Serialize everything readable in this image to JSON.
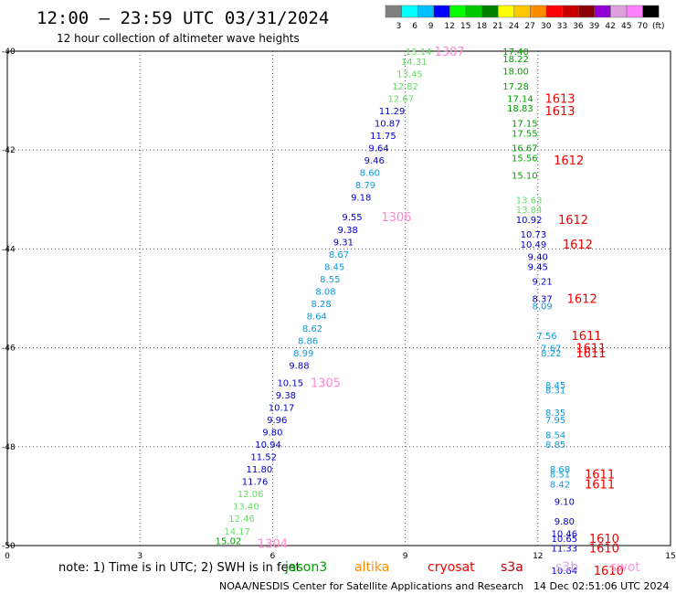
{
  "header": {
    "title": "12:00 – 23:59 UTC 03/31/2024",
    "subtitle": "12 hour collection of altimeter wave heights"
  },
  "colorbar": {
    "unit": "(ft)",
    "levels": [
      "3",
      "6",
      "9",
      "12",
      "15",
      "18",
      "21",
      "24",
      "27",
      "30",
      "33",
      "36",
      "39",
      "42",
      "45",
      "70"
    ],
    "colors": [
      "#808080",
      "#00ffff",
      "#00bfff",
      "#0000ff",
      "#00ff00",
      "#00c800",
      "#008000",
      "#ffff00",
      "#ffc800",
      "#ff8c00",
      "#ff0000",
      "#c80000",
      "#8b0000",
      "#9400d3",
      "#dda0dd",
      "#ff80ff",
      "#000000"
    ]
  },
  "footer": {
    "note": "note:  1) Time is in UTC;  2) SWH is in feet",
    "credit": "NOAA/NESDIS Center for Satellite Applications and Research",
    "timestamp": "14 Dec 02:51:06 UTC 2024"
  },
  "legend": [
    {
      "name": "jason3",
      "color": "#00a000"
    },
    {
      "name": "altika",
      "color": "#ff8c00"
    },
    {
      "name": "cryosat",
      "color": "#ff0000"
    },
    {
      "name": "s3a",
      "color": "#c00000"
    },
    {
      "name": "s3b",
      "color": "#d8a8e0"
    },
    {
      "name": "swot",
      "color": "#ff99dd"
    }
  ],
  "chart_data": {
    "type": "scatter",
    "xlim": [
      0,
      15
    ],
    "ylim": [
      -50,
      -40
    ],
    "xticks": [
      "0",
      "3",
      "6",
      "9",
      "12",
      "15"
    ],
    "yticks": [
      "-40",
      "-42",
      "-44",
      "-46",
      "-48",
      "-50"
    ],
    "grid": true,
    "points": [
      {
        "x": 9.3,
        "y": -40.0,
        "label": "13.14",
        "color": "#66dd66"
      },
      {
        "x": 9.2,
        "y": -40.2,
        "label": "14.31",
        "color": "#66dd66"
      },
      {
        "x": 9.1,
        "y": -40.45,
        "label": "13.45",
        "color": "#66dd66"
      },
      {
        "x": 9.0,
        "y": -40.7,
        "label": "12.82",
        "color": "#66dd66"
      },
      {
        "x": 8.9,
        "y": -40.95,
        "label": "12.67",
        "color": "#66dd66"
      },
      {
        "x": 8.7,
        "y": -41.2,
        "label": "11.29",
        "color": "#0000cc"
      },
      {
        "x": 8.6,
        "y": -41.45,
        "label": "10.87",
        "color": "#0000cc"
      },
      {
        "x": 8.5,
        "y": -41.7,
        "label": "11.75",
        "color": "#0000cc"
      },
      {
        "x": 8.4,
        "y": -41.95,
        "label": "9.64",
        "color": "#0000cc"
      },
      {
        "x": 8.3,
        "y": -42.2,
        "label": "9.46",
        "color": "#0000cc"
      },
      {
        "x": 8.2,
        "y": -42.45,
        "label": "8.60",
        "color": "#1199dd"
      },
      {
        "x": 8.1,
        "y": -42.7,
        "label": "8.79",
        "color": "#1199dd"
      },
      {
        "x": 8.0,
        "y": -42.95,
        "label": "9.18",
        "color": "#0000cc"
      },
      {
        "x": 7.8,
        "y": -43.35,
        "label": "9.55",
        "color": "#0000cc"
      },
      {
        "x": 7.7,
        "y": -43.6,
        "label": "9.38",
        "color": "#0000cc"
      },
      {
        "x": 7.6,
        "y": -43.85,
        "label": "9.31",
        "color": "#0000cc"
      },
      {
        "x": 7.5,
        "y": -44.1,
        "label": "8.67",
        "color": "#1199dd"
      },
      {
        "x": 7.4,
        "y": -44.35,
        "label": "8.45",
        "color": "#1199dd"
      },
      {
        "x": 7.3,
        "y": -44.6,
        "label": "8.55",
        "color": "#1199dd"
      },
      {
        "x": 7.2,
        "y": -44.85,
        "label": "8.08",
        "color": "#1199dd"
      },
      {
        "x": 7.1,
        "y": -45.1,
        "label": "8.28",
        "color": "#1199dd"
      },
      {
        "x": 7.0,
        "y": -45.35,
        "label": "8.64",
        "color": "#1199dd"
      },
      {
        "x": 6.9,
        "y": -45.6,
        "label": "8.62",
        "color": "#1199dd"
      },
      {
        "x": 6.8,
        "y": -45.85,
        "label": "8.86",
        "color": "#1199dd"
      },
      {
        "x": 6.7,
        "y": -46.1,
        "label": "8.99",
        "color": "#1199dd"
      },
      {
        "x": 6.6,
        "y": -46.35,
        "label": "9.88",
        "color": "#0000cc"
      },
      {
        "x": 6.4,
        "y": -46.7,
        "label": "10.15",
        "color": "#0000cc"
      },
      {
        "x": 6.3,
        "y": -46.95,
        "label": "9.38",
        "color": "#0000cc"
      },
      {
        "x": 6.2,
        "y": -47.2,
        "label": "10.17",
        "color": "#0000cc"
      },
      {
        "x": 6.1,
        "y": -47.45,
        "label": "9.96",
        "color": "#0000cc"
      },
      {
        "x": 6.0,
        "y": -47.7,
        "label": "9.80",
        "color": "#0000cc"
      },
      {
        "x": 5.9,
        "y": -47.95,
        "label": "10.94",
        "color": "#0000cc"
      },
      {
        "x": 5.8,
        "y": -48.2,
        "label": "11.52",
        "color": "#0000cc"
      },
      {
        "x": 5.7,
        "y": -48.45,
        "label": "11.80",
        "color": "#0000cc"
      },
      {
        "x": 5.6,
        "y": -48.7,
        "label": "11.76",
        "color": "#0000cc"
      },
      {
        "x": 5.5,
        "y": -48.95,
        "label": "12.06",
        "color": "#66dd66"
      },
      {
        "x": 5.4,
        "y": -49.2,
        "label": "13.40",
        "color": "#66dd66"
      },
      {
        "x": 5.3,
        "y": -49.45,
        "label": "12.46",
        "color": "#66dd66"
      },
      {
        "x": 5.2,
        "y": -49.7,
        "label": "14.17",
        "color": "#66dd66"
      },
      {
        "x": 5.0,
        "y": -49.9,
        "label": "15.02",
        "color": "#00a000"
      },
      {
        "x": 11.5,
        "y": -40.0,
        "label": "17.40",
        "color": "#00a000"
      },
      {
        "x": 11.5,
        "y": -40.15,
        "label": "18.22",
        "color": "#00a000"
      },
      {
        "x": 11.5,
        "y": -40.4,
        "label": "18.00",
        "color": "#00a000"
      },
      {
        "x": 11.5,
        "y": -40.7,
        "label": "17.28",
        "color": "#00a000"
      },
      {
        "x": 11.6,
        "y": -40.95,
        "label": "17.14",
        "color": "#00a000"
      },
      {
        "x": 11.6,
        "y": -41.15,
        "label": "18.83",
        "color": "#00a000"
      },
      {
        "x": 11.7,
        "y": -41.45,
        "label": "17.15",
        "color": "#00a000"
      },
      {
        "x": 11.7,
        "y": -41.65,
        "label": "17.55",
        "color": "#00a000"
      },
      {
        "x": 11.7,
        "y": -41.95,
        "label": "16.67",
        "color": "#00a000"
      },
      {
        "x": 11.7,
        "y": -42.15,
        "label": "15.56",
        "color": "#00a000"
      },
      {
        "x": 11.7,
        "y": -42.5,
        "label": "15.10",
        "color": "#00a000"
      },
      {
        "x": 11.8,
        "y": -43.0,
        "label": "13.63",
        "color": "#66dd66"
      },
      {
        "x": 11.8,
        "y": -43.2,
        "label": "13.84",
        "color": "#66dd66"
      },
      {
        "x": 11.8,
        "y": -43.4,
        "label": "10.92",
        "color": "#0000cc"
      },
      {
        "x": 11.9,
        "y": -43.7,
        "label": "10.73",
        "color": "#0000cc"
      },
      {
        "x": 11.9,
        "y": -43.9,
        "label": "10.49",
        "color": "#0000cc"
      },
      {
        "x": 12.0,
        "y": -44.15,
        "label": "9.40",
        "color": "#0000cc"
      },
      {
        "x": 12.0,
        "y": -44.35,
        "label": "9.45",
        "color": "#0000cc"
      },
      {
        "x": 12.1,
        "y": -44.65,
        "label": "9.21",
        "color": "#0000cc"
      },
      {
        "x": 12.1,
        "y": -45.0,
        "label": "8.37",
        "color": "#0000cc"
      },
      {
        "x": 12.1,
        "y": -45.15,
        "label": "8.09",
        "color": "#1199dd"
      },
      {
        "x": 12.2,
        "y": -45.75,
        "label": "7.56",
        "color": "#1199dd"
      },
      {
        "x": 12.3,
        "y": -46.0,
        "label": "7.67",
        "color": "#1199dd"
      },
      {
        "x": 12.3,
        "y": -46.1,
        "label": "8.22",
        "color": "#1199dd"
      },
      {
        "x": 12.4,
        "y": -46.75,
        "label": "8.45",
        "color": "#1199dd"
      },
      {
        "x": 12.4,
        "y": -46.85,
        "label": "8.31",
        "color": "#1199dd"
      },
      {
        "x": 12.4,
        "y": -47.3,
        "label": "8.35",
        "color": "#1199dd"
      },
      {
        "x": 12.4,
        "y": -47.45,
        "label": "7.95",
        "color": "#1199dd"
      },
      {
        "x": 12.4,
        "y": -47.75,
        "label": "8.54",
        "color": "#1199dd"
      },
      {
        "x": 12.4,
        "y": -47.95,
        "label": "8.85",
        "color": "#1199dd"
      },
      {
        "x": 12.5,
        "y": -48.45,
        "label": "8.68",
        "color": "#1199dd"
      },
      {
        "x": 12.5,
        "y": -48.55,
        "label": "8.51",
        "color": "#1199dd"
      },
      {
        "x": 12.5,
        "y": -48.75,
        "label": "8.42",
        "color": "#1199dd"
      },
      {
        "x": 12.6,
        "y": -49.1,
        "label": "9.10",
        "color": "#0000cc"
      },
      {
        "x": 12.6,
        "y": -49.5,
        "label": "9.80",
        "color": "#0000cc"
      },
      {
        "x": 12.6,
        "y": -49.75,
        "label": "10.46",
        "color": "#0000cc"
      },
      {
        "x": 12.6,
        "y": -49.85,
        "label": "10.65",
        "color": "#0000cc"
      },
      {
        "x": 12.6,
        "y": -50.05,
        "label": "11.33",
        "color": "#0000cc"
      },
      {
        "x": 12.6,
        "y": -50.5,
        "label": "10.64",
        "color": "#0000cc"
      }
    ],
    "pass_labels": [
      {
        "x": 10.0,
        "y": -40.0,
        "label": "1307",
        "color": "#ff88cc"
      },
      {
        "x": 8.8,
        "y": -43.35,
        "label": "1306",
        "color": "#ff88cc"
      },
      {
        "x": 7.2,
        "y": -46.7,
        "label": "1305",
        "color": "#ff88cc"
      },
      {
        "x": 6.0,
        "y": -49.95,
        "label": "1304",
        "color": "#ff88cc"
      },
      {
        "x": 12.5,
        "y": -40.95,
        "label": "1613",
        "color": "#ee0000"
      },
      {
        "x": 12.5,
        "y": -41.2,
        "label": "1613",
        "color": "#ee0000"
      },
      {
        "x": 12.7,
        "y": -42.2,
        "label": "1612",
        "color": "#ee0000"
      },
      {
        "x": 12.8,
        "y": -43.4,
        "label": "1612",
        "color": "#ee0000"
      },
      {
        "x": 12.9,
        "y": -43.9,
        "label": "1612",
        "color": "#ee0000"
      },
      {
        "x": 13.0,
        "y": -45.0,
        "label": "1612",
        "color": "#ee0000"
      },
      {
        "x": 13.1,
        "y": -45.75,
        "label": "1611",
        "color": "#ee0000"
      },
      {
        "x": 13.2,
        "y": -46.0,
        "label": "1611",
        "color": "#ee0000"
      },
      {
        "x": 13.2,
        "y": -46.1,
        "label": "1611",
        "color": "#ee0000"
      },
      {
        "x": 13.4,
        "y": -48.55,
        "label": "1611",
        "color": "#ee0000"
      },
      {
        "x": 13.4,
        "y": -48.75,
        "label": "1611",
        "color": "#ee0000"
      },
      {
        "x": 13.5,
        "y": -49.85,
        "label": "1610",
        "color": "#ee0000"
      },
      {
        "x": 13.5,
        "y": -50.05,
        "label": "1610",
        "color": "#ee0000"
      },
      {
        "x": 13.6,
        "y": -50.5,
        "label": "1610",
        "color": "#ee0000"
      }
    ]
  }
}
